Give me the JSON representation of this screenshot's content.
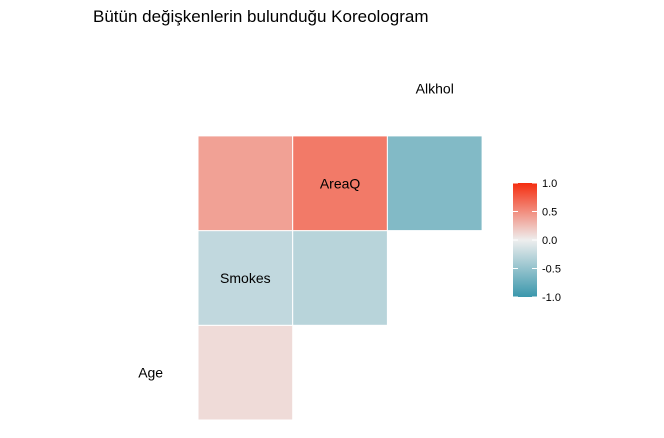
{
  "chart_data": {
    "type": "heatmap",
    "title": "Bütün değişkenlerin bulunduğu Koreologram",
    "variables": [
      "Age",
      "Smokes",
      "AreaQ",
      "Alkhol"
    ],
    "cells": [
      {
        "row": "Smokes",
        "col": "Age",
        "value": 0.1
      },
      {
        "row": "AreaQ",
        "col": "Age",
        "value": -0.25
      },
      {
        "row": "AreaQ",
        "col": "Smokes",
        "value": -0.3
      },
      {
        "row": "Alkhol",
        "col": "Age",
        "value": 0.4
      },
      {
        "row": "Alkhol",
        "col": "Smokes",
        "value": 0.6
      },
      {
        "row": "Alkhol",
        "col": "AreaQ",
        "value": -0.6
      }
    ],
    "legend": {
      "ticks": [
        "1.0",
        "0.5",
        "0.0",
        "-0.5",
        "-1.0"
      ],
      "range": [
        -1.0,
        1.0
      ],
      "colors": {
        "low": "#3A97AC",
        "mid": "#EEEEEE",
        "high": "#F52D0F"
      }
    }
  }
}
